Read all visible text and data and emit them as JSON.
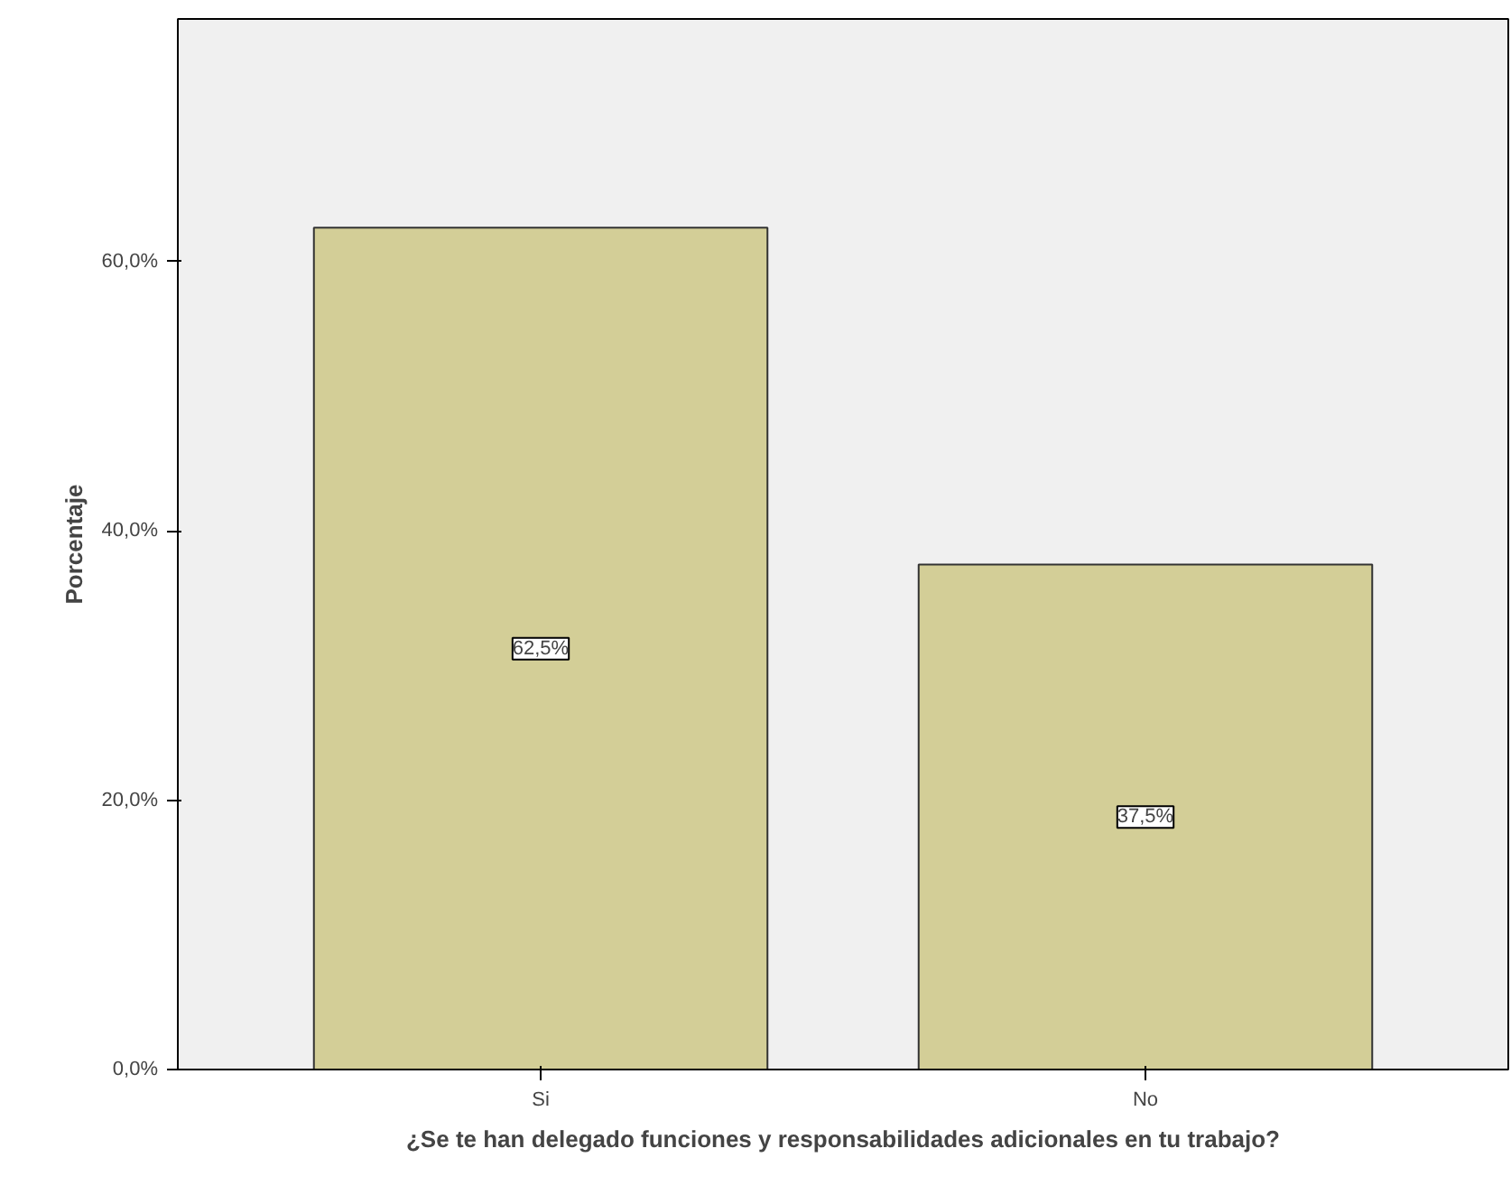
{
  "chart_data": {
    "type": "bar",
    "xlabel": "¿Se te han delegado funciones y responsabilidades adicionales en tu trabajo?",
    "ylabel": "Porcentaje",
    "categories": [
      "Si",
      "No"
    ],
    "values": [
      62.5,
      37.5
    ],
    "value_labels": [
      "62,5%",
      "37,5%"
    ],
    "color": "#d3ce97",
    "ylim": [
      0,
      78
    ],
    "yticks": [
      {
        "value": 0,
        "label": "0,0%"
      },
      {
        "value": 20,
        "label": "20,0%"
      },
      {
        "value": 40,
        "label": "40,0%"
      },
      {
        "value": 60,
        "label": "60,0%"
      }
    ],
    "grid": false
  }
}
